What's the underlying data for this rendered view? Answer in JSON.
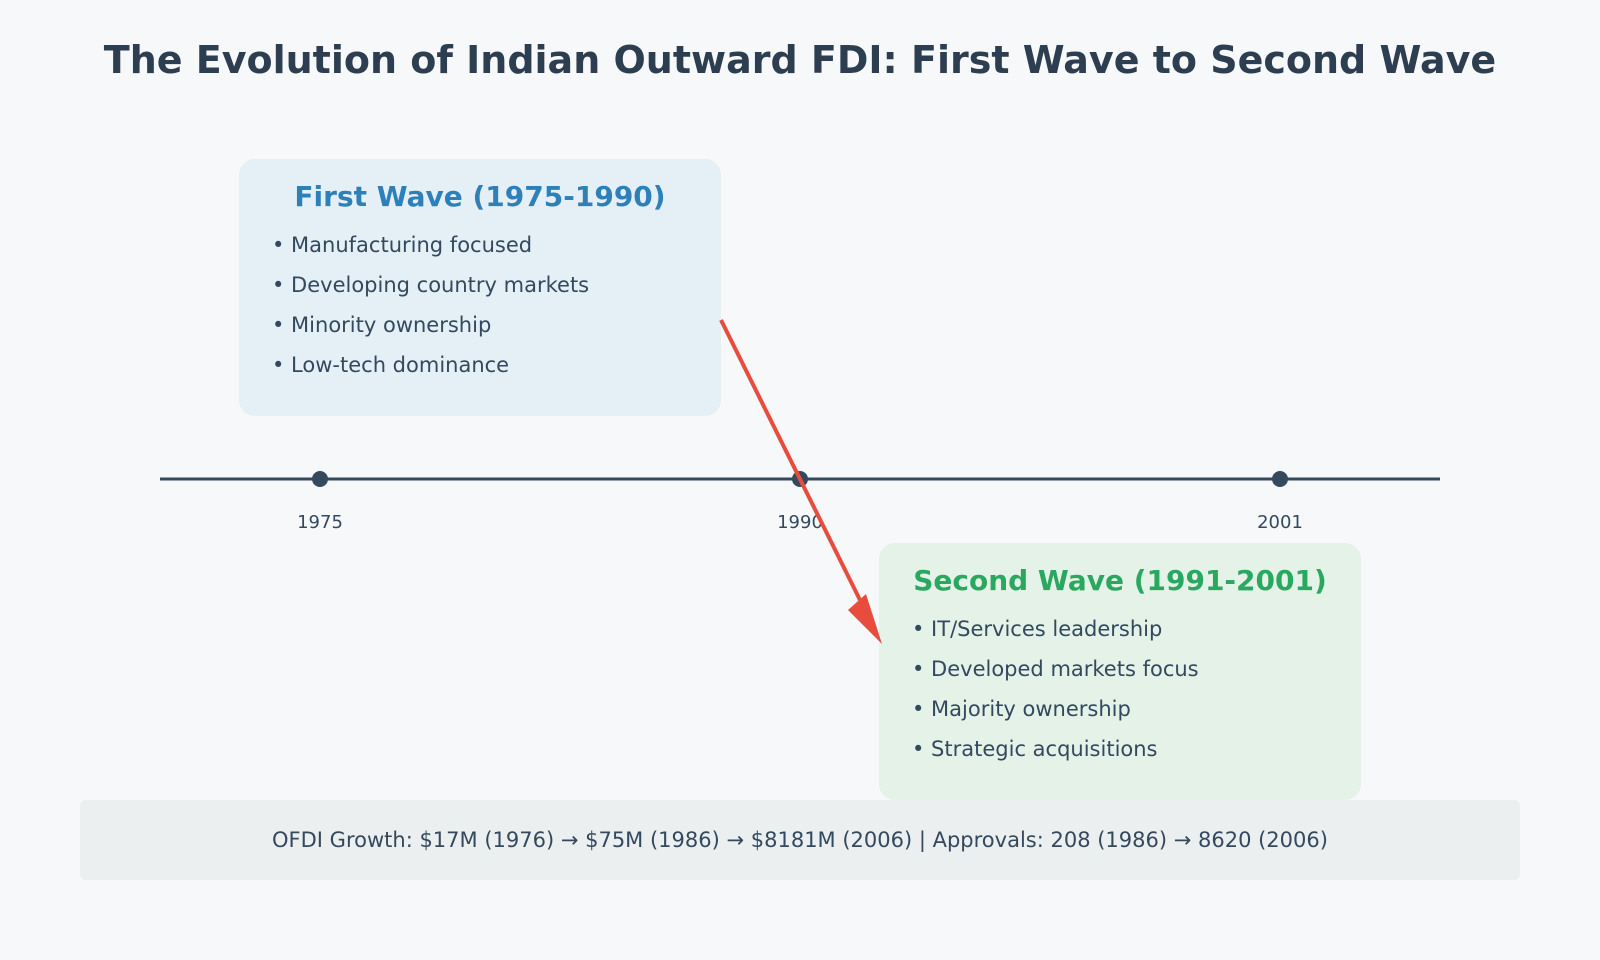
{
  "title": "The Evolution of Indian Outward FDI: First Wave to Second Wave",
  "timeline": {
    "years": [
      "1975",
      "1990",
      "2001"
    ]
  },
  "first_wave": {
    "title": "First Wave (1975-1990)",
    "items": [
      "• Manufacturing focused",
      "• Developing country markets",
      "• Minority ownership",
      "• Low-tech dominance"
    ]
  },
  "second_wave": {
    "title": "Second Wave (1991-2001)",
    "items": [
      "• IT/Services leadership",
      "• Developed markets focus",
      "• Majority ownership",
      "• Strategic acquisitions"
    ]
  },
  "stats": "OFDI Growth: $17M (1976) → $75M (1986) → $8181M (2006) | Approvals: 208 (1986) → 8620 (2006)",
  "colors": {
    "timeline": "#34495e",
    "arrow": "#e74c3c",
    "first_wave_accent": "#2e80b8",
    "second_wave_accent": "#2aa860"
  }
}
